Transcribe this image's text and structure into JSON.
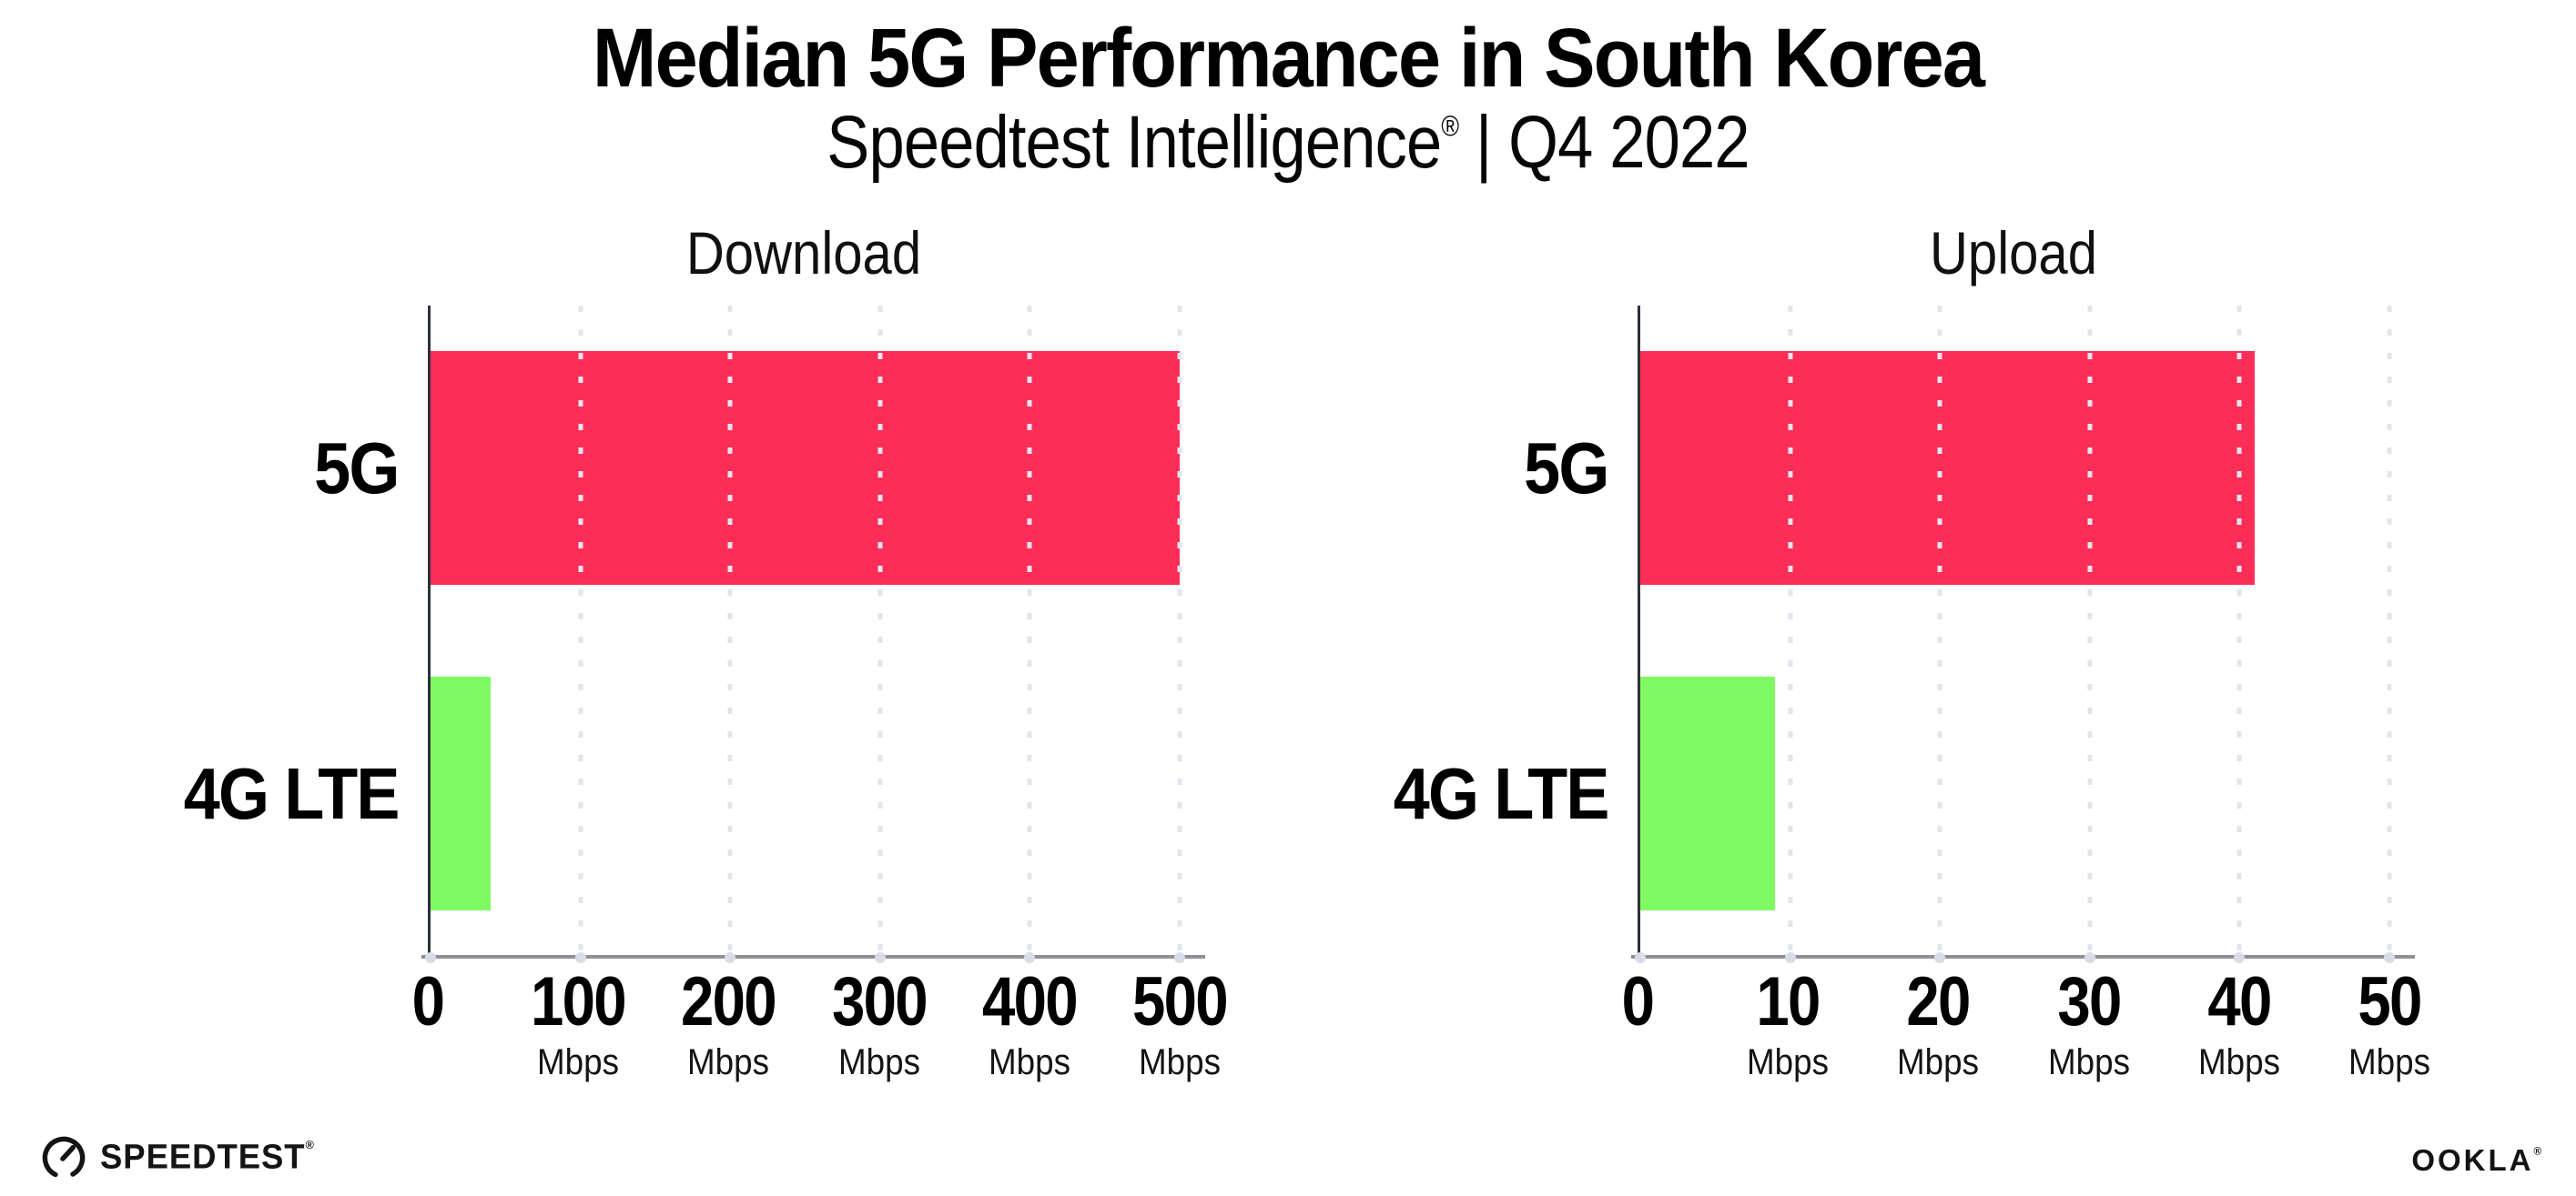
{
  "header": {
    "title": "Median 5G Performance in South Korea",
    "subtitle_product": "Speedtest Intelligence",
    "subtitle_reg": "®",
    "subtitle_rest": " | Q4 2022"
  },
  "chart_data": [
    {
      "type": "bar",
      "orientation": "horizontal",
      "title": "Download",
      "categories": [
        "5G",
        "4G LTE"
      ],
      "values": [
        500,
        40
      ],
      "unit": "Mbps",
      "xlim": [
        0,
        500
      ],
      "xticks": [
        0,
        100,
        200,
        300,
        400,
        500
      ],
      "tick_unit_label": "Mbps",
      "grid": "dotted-vertical",
      "legend": "none",
      "bar_colors": [
        "#FC2E58",
        "#80FA62"
      ]
    },
    {
      "type": "bar",
      "orientation": "horizontal",
      "title": "Upload",
      "categories": [
        "5G",
        "4G LTE"
      ],
      "values": [
        41,
        9
      ],
      "unit": "Mbps",
      "xlim": [
        0,
        50
      ],
      "xticks": [
        0,
        10,
        20,
        30,
        40,
        50
      ],
      "tick_unit_label": "Mbps",
      "grid": "dotted-vertical",
      "legend": "none",
      "bar_colors": [
        "#FC2E58",
        "#80FA62"
      ]
    }
  ],
  "footer": {
    "speedtest_label": "SPEEDTEST",
    "speedtest_reg": "®",
    "ookla_label": "OOKLA",
    "ookla_reg": "®"
  },
  "colors": {
    "bar_5g": "#FC2E58",
    "bar_4g_lte": "#80FA62",
    "gridline": "#E2E4EE",
    "axis_y": "#2D3138",
    "axis_x": "#8F9093",
    "background": "#FFFFFF",
    "text": "#000000"
  }
}
